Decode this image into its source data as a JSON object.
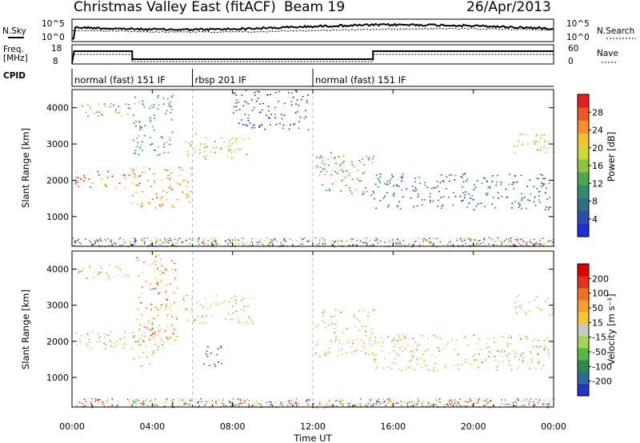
{
  "header": {
    "station": "Christmas Valley East (fitACF)",
    "beam": "Beam 19",
    "date": "26/Apr/2013"
  },
  "noise_panel": {
    "left_label": "N.Sky",
    "right_label": "N.Search",
    "left_ticks": [
      "10^5",
      "10^0"
    ],
    "right_ticks": [
      "10^5",
      "10^0"
    ]
  },
  "freq_panel": {
    "left_label_1": "Freq.",
    "left_label_2": "[MHz]",
    "right_label": "Nave",
    "left_ticks": [
      "18",
      "8"
    ],
    "right_ticks": [
      "60",
      "0"
    ]
  },
  "cpid": {
    "label": "CPID",
    "modes": [
      {
        "name": "normal (fast) 151 IF",
        "start": 0,
        "end": 6
      },
      {
        "name": "rbsp 201 IF",
        "start": 6,
        "end": 12
      },
      {
        "name": "normal (fast) 151 IF",
        "start": 12,
        "end": 24
      }
    ]
  },
  "chart_data": [
    {
      "type": "heatmap",
      "quantity": "Power",
      "ylabel": "Slant Range [km]",
      "xlim": [
        0,
        24
      ],
      "ylim": [
        180,
        4500
      ],
      "yticks": [
        1000,
        2000,
        3000,
        4000
      ],
      "colorbar": {
        "label": "Power [dB]",
        "ticks": [
          4,
          8,
          12,
          16,
          20,
          24,
          28
        ],
        "colors": [
          "#1a2ee0",
          "#2b4fa8",
          "#2e6e8a",
          "#2f8f6a",
          "#4aa84a",
          "#8ec43e",
          "#cfd83a",
          "#f5c030",
          "#f59028",
          "#f05a20",
          "#e61e1e"
        ]
      },
      "echo_regions": [
        {
          "t0": 0.1,
          "t1": 2.9,
          "r0": 3750,
          "r1": 4150,
          "level": 0.45
        },
        {
          "t0": 0.1,
          "t1": 2.9,
          "r0": 1800,
          "r1": 2300,
          "level": 0.85
        },
        {
          "t0": 2.9,
          "t1": 6.0,
          "r0": 1250,
          "r1": 2400,
          "level": 0.75
        },
        {
          "t0": 3.0,
          "t1": 5.0,
          "r0": 2700,
          "r1": 4400,
          "level": 0.35
        },
        {
          "t0": 5.5,
          "t1": 8.8,
          "r0": 2600,
          "r1": 3300,
          "level": 0.55
        },
        {
          "t0": 8.0,
          "t1": 11.8,
          "r0": 3400,
          "r1": 4500,
          "level": 0.15
        },
        {
          "t0": 12.1,
          "t1": 15.0,
          "r0": 1600,
          "r1": 2800,
          "level": 0.4
        },
        {
          "t0": 15.0,
          "t1": 23.8,
          "r0": 1200,
          "r1": 2200,
          "level": 0.2
        },
        {
          "t0": 22.0,
          "t1": 24.0,
          "r0": 2700,
          "r1": 3300,
          "level": 0.6
        }
      ]
    },
    {
      "type": "heatmap",
      "quantity": "Velocity",
      "ylabel": "Slant Range [km]",
      "xlabel": "Time UT",
      "xlim": [
        0,
        24
      ],
      "ylim": [
        180,
        4500
      ],
      "yticks": [
        1000,
        2000,
        3000,
        4000
      ],
      "xticks": [
        "00:00",
        "04:00",
        "08:00",
        "12:00",
        "16:00",
        "20:00",
        "00:00"
      ],
      "colorbar": {
        "label": "Velocity [m s⁻¹]",
        "ticks": [
          200,
          100,
          50,
          15,
          -15,
          -50,
          -100,
          -200
        ],
        "colors": [
          "#2233cc",
          "#2a6aa0",
          "#2a8a50",
          "#55b840",
          "#9ed850",
          "#c8c8c8",
          "#f5c838",
          "#f5a030",
          "#f07020",
          "#e83020",
          "#e00000"
        ]
      },
      "echo_regions": [
        {
          "t0": 0.1,
          "t1": 2.9,
          "r0": 3750,
          "r1": 4150,
          "level": 0.5
        },
        {
          "t0": 0.1,
          "t1": 2.9,
          "r0": 1800,
          "r1": 2300,
          "level": 0.5
        },
        {
          "t0": 2.9,
          "t1": 4.5,
          "r0": 1300,
          "r1": 2400,
          "level": 0.5
        },
        {
          "t0": 3.2,
          "t1": 5.2,
          "r0": 2000,
          "r1": 4400,
          "level": 0.7
        },
        {
          "t0": 5.5,
          "t1": 9.0,
          "r0": 2500,
          "r1": 3300,
          "level": 0.5
        },
        {
          "t0": 6.5,
          "t1": 7.5,
          "r0": 1300,
          "r1": 1900,
          "level": 0.1
        },
        {
          "t0": 12.1,
          "t1": 15.0,
          "r0": 1600,
          "r1": 2900,
          "level": 0.5
        },
        {
          "t0": 15.0,
          "t1": 23.8,
          "r0": 1200,
          "r1": 2200,
          "level": 0.5
        },
        {
          "t0": 22.0,
          "t1": 24.0,
          "r0": 2700,
          "r1": 3300,
          "level": 0.5
        }
      ]
    }
  ]
}
